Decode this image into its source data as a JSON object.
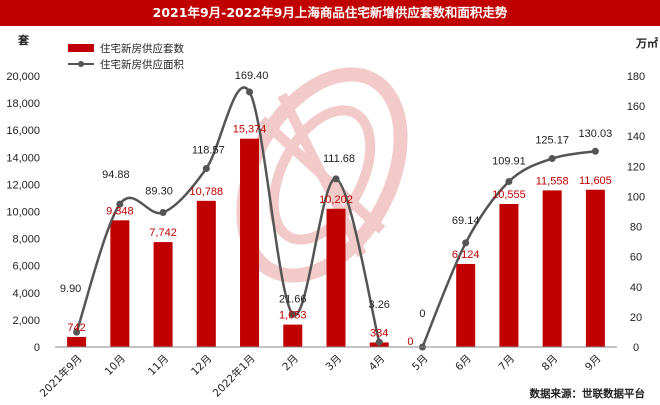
{
  "title": "2021年9月-2022年9月上海商品住宅新增供应套数和面积走势",
  "source": "数据来源：世联数据平台",
  "colors": {
    "bar": "#c00000",
    "line": "#555555",
    "title_bg": "#c00000",
    "watermark": "#e8a0a0"
  },
  "chart_data": {
    "type": "bar",
    "categories": [
      "2021年9月",
      "10月",
      "11月",
      "12月",
      "2022年1月",
      "2月",
      "3月",
      "4月",
      "5月",
      "6月",
      "7月",
      "8月",
      "9月"
    ],
    "series": [
      {
        "name": "住宅新房供应套数",
        "type": "bar",
        "axis": "left",
        "values": [
          742,
          9348,
          7742,
          10788,
          15374,
          1653,
          10202,
          334,
          0,
          6124,
          10555,
          11558,
          11605
        ]
      },
      {
        "name": "住宅新房供应面积",
        "type": "line",
        "axis": "right",
        "values": [
          9.9,
          94.88,
          89.3,
          118.57,
          169.4,
          21.66,
          111.68,
          3.26,
          0,
          69.14,
          109.91,
          125.17,
          130.03
        ]
      }
    ],
    "bar_labels": [
      "742",
      "9,348",
      "7,742",
      "10,788",
      "15,374",
      "1,653",
      "10,202",
      "334",
      "0",
      "6,124",
      "10,555",
      "11,558",
      "11,605"
    ],
    "line_labels": [
      "9.90",
      "94.88",
      "89.30",
      "118.57",
      "169.40",
      "21.66",
      "111.68",
      "3.26",
      "0",
      "69.14",
      "109.91",
      "125.17",
      "130.03"
    ],
    "left_axis": {
      "unit": "套",
      "ylim": [
        0,
        20000
      ],
      "ticks": [
        "0",
        "2,000",
        "4,000",
        "6,000",
        "8,000",
        "10,000",
        "12,000",
        "14,000",
        "16,000",
        "18,000",
        "20,000"
      ]
    },
    "right_axis": {
      "unit": "万㎡",
      "ylim": [
        0,
        180
      ],
      "ticks": [
        "0",
        "20",
        "40",
        "60",
        "80",
        "100",
        "120",
        "140",
        "160",
        "180"
      ]
    },
    "grid": false,
    "legend": "top-left"
  }
}
